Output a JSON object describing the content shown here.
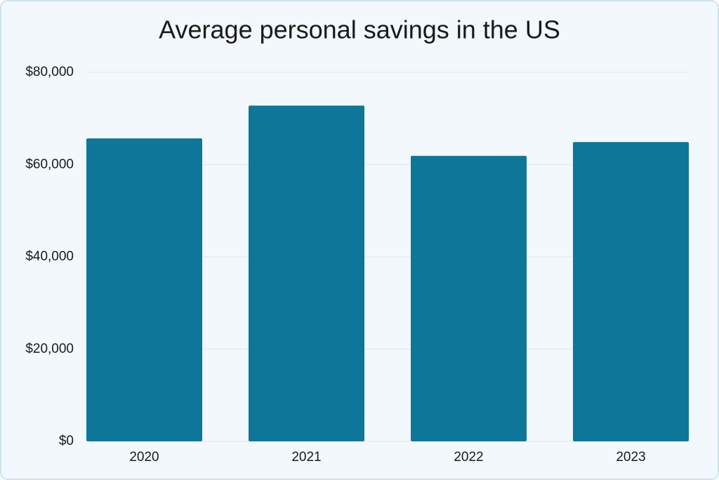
{
  "chart_data": {
    "type": "bar",
    "title": "Average personal savings in the US",
    "categories": [
      "2020",
      "2021",
      "2022",
      "2023"
    ],
    "values": [
      65700,
      72800,
      61900,
      64900
    ],
    "color": "#0e7799",
    "ylim": [
      0,
      80000
    ],
    "yticks": [
      {
        "value": 0,
        "label": "$0"
      },
      {
        "value": 20000,
        "label": "$20,000"
      },
      {
        "value": 40000,
        "label": "$40,000"
      },
      {
        "value": 60000,
        "label": "$60,000"
      },
      {
        "value": 80000,
        "label": "$80,000"
      }
    ],
    "grid": true
  }
}
